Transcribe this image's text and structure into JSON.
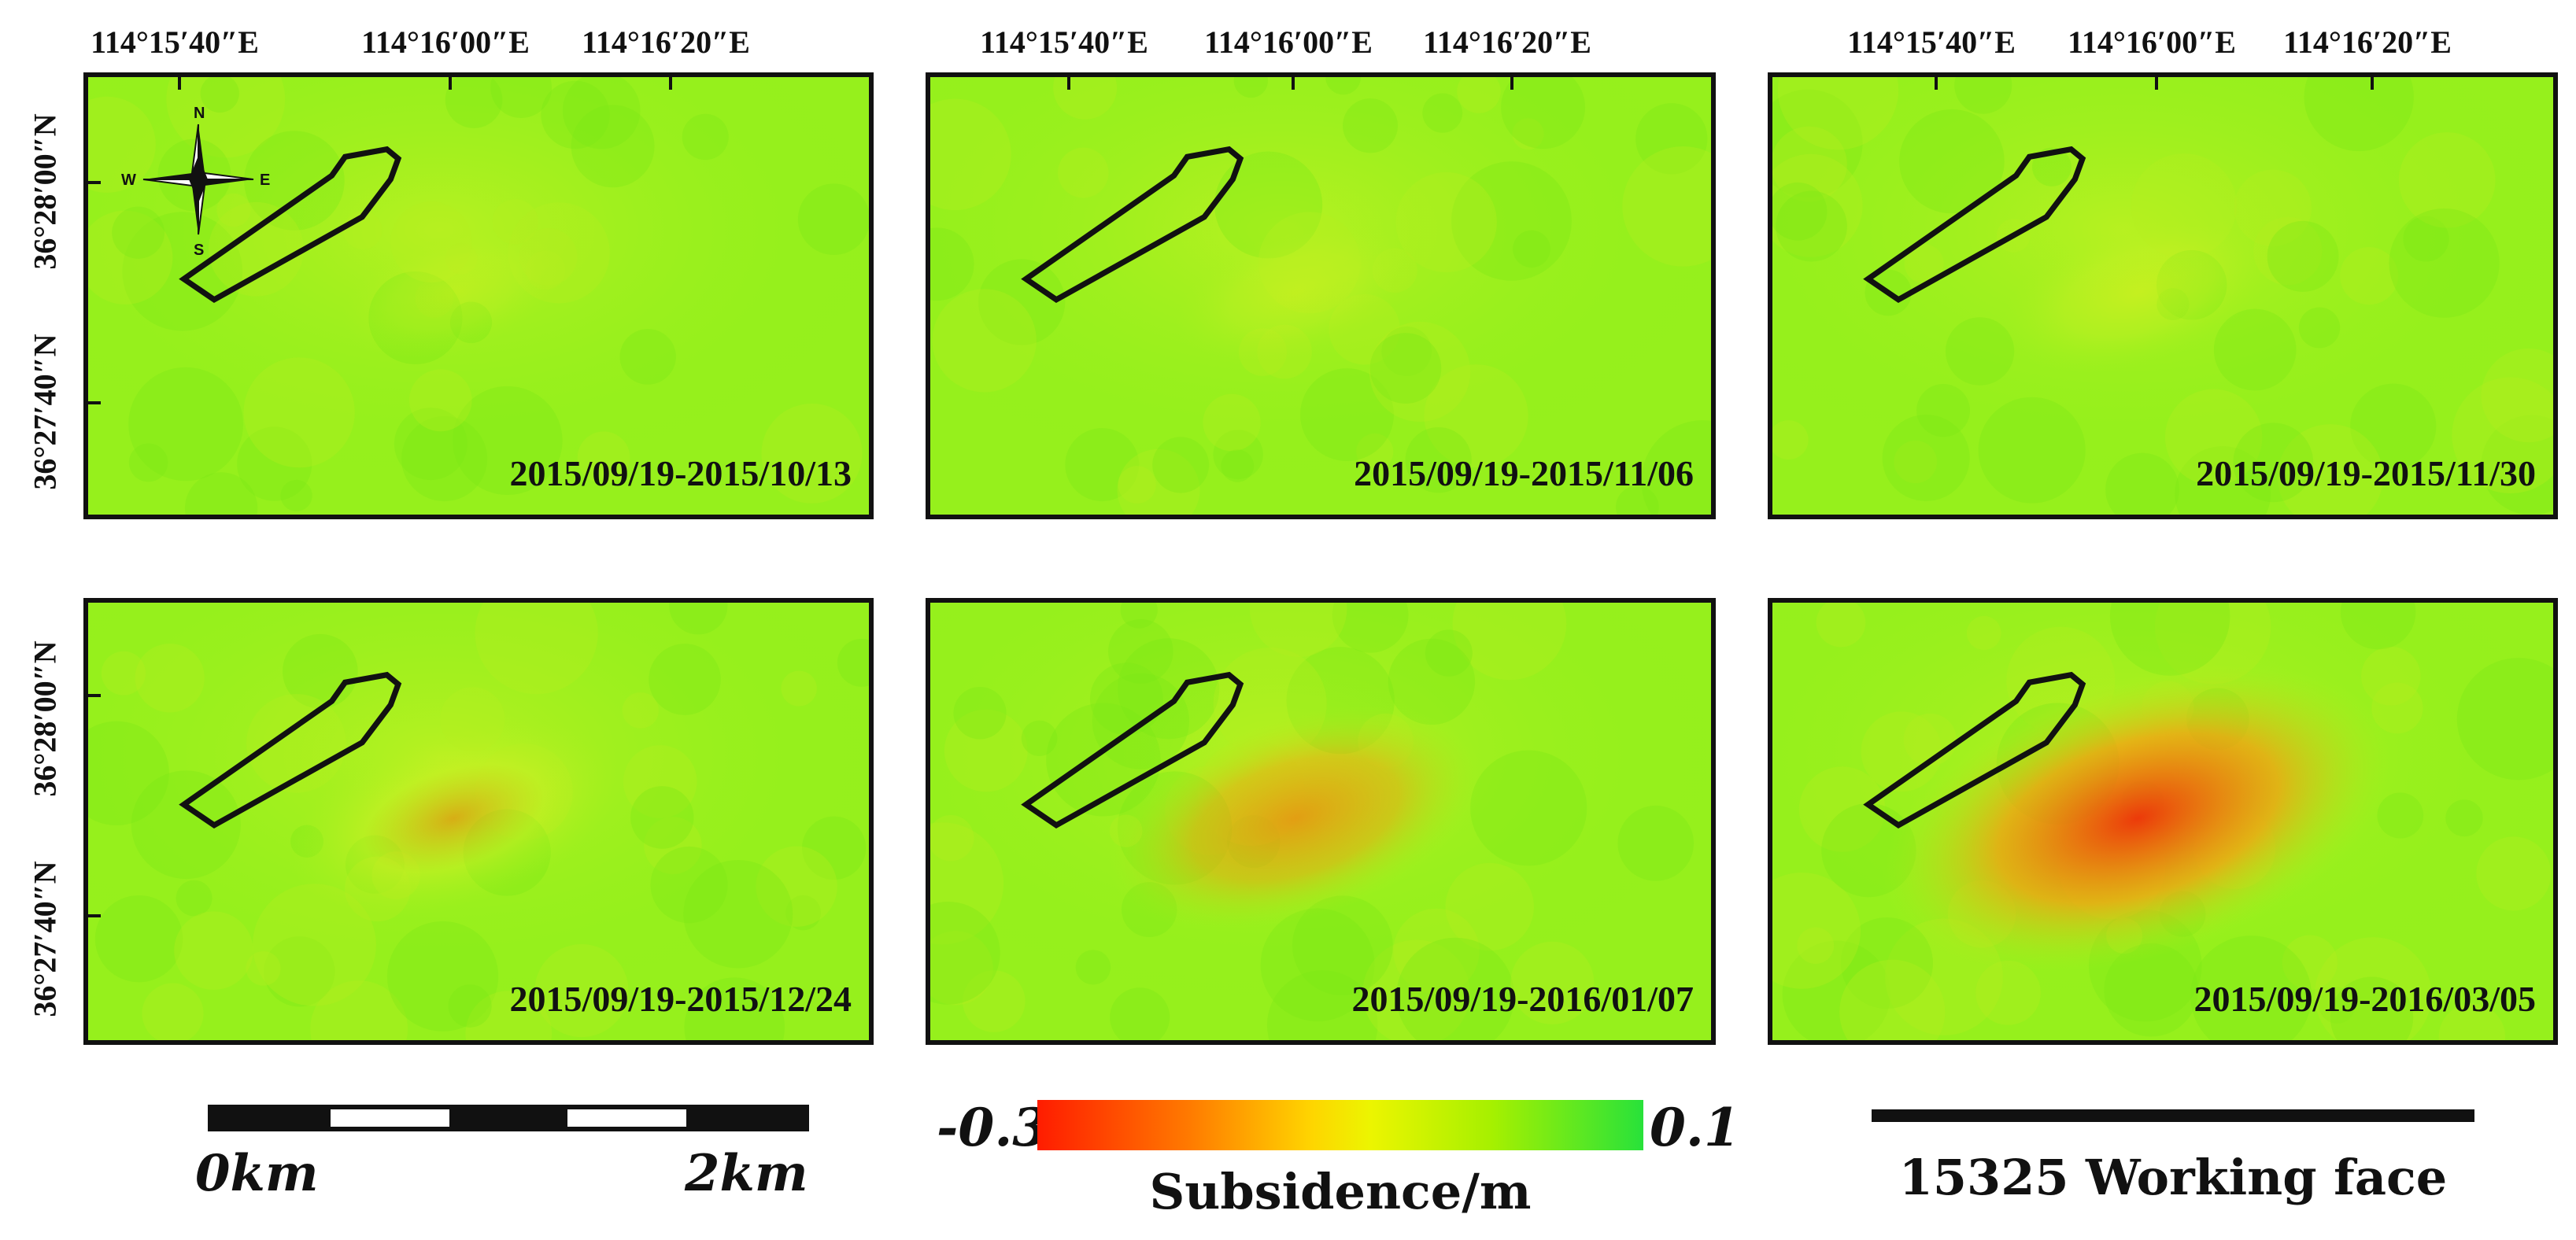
{
  "longitude_labels": [
    "114°15′40″E",
    "114°16′00″E",
    "114°16′20″E"
  ],
  "latitude_labels": [
    "36°28′00″N",
    "36°27′40″N"
  ],
  "compass": {
    "n": "N",
    "s": "S",
    "e": "E",
    "w": "W"
  },
  "panels": [
    {
      "date": "2015/09/19-2015/10/13",
      "subsidence_intensity": 0.05
    },
    {
      "date": "2015/09/19-2015/11/06",
      "subsidence_intensity": 0.1
    },
    {
      "date": "2015/09/19-2015/11/30",
      "subsidence_intensity": 0.2
    },
    {
      "date": "2015/09/19-2015/12/24",
      "subsidence_intensity": 0.4
    },
    {
      "date": "2015/09/19-2016/01/07",
      "subsidence_intensity": 0.55
    },
    {
      "date": "2015/09/19-2016/03/05",
      "subsidence_intensity": 1.0
    }
  ],
  "scale_bar": {
    "left_label": "0km",
    "right_label": "2km"
  },
  "colorbar": {
    "min_label": "-0.3",
    "max_label": "0.1",
    "title": "Subsidence/m",
    "min_color": "#ff1c00",
    "max_color": "#28e23a"
  },
  "legend": {
    "working_face_label": "15325 Working face"
  }
}
